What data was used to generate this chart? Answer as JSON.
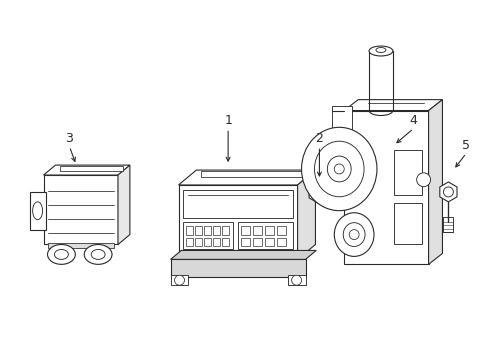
{
  "background_color": "#ffffff",
  "line_color": "#2a2a2a",
  "line_width": 0.8,
  "label_color": "#2a2a2a",
  "fig_width": 4.89,
  "fig_height": 3.6,
  "dpi": 100
}
